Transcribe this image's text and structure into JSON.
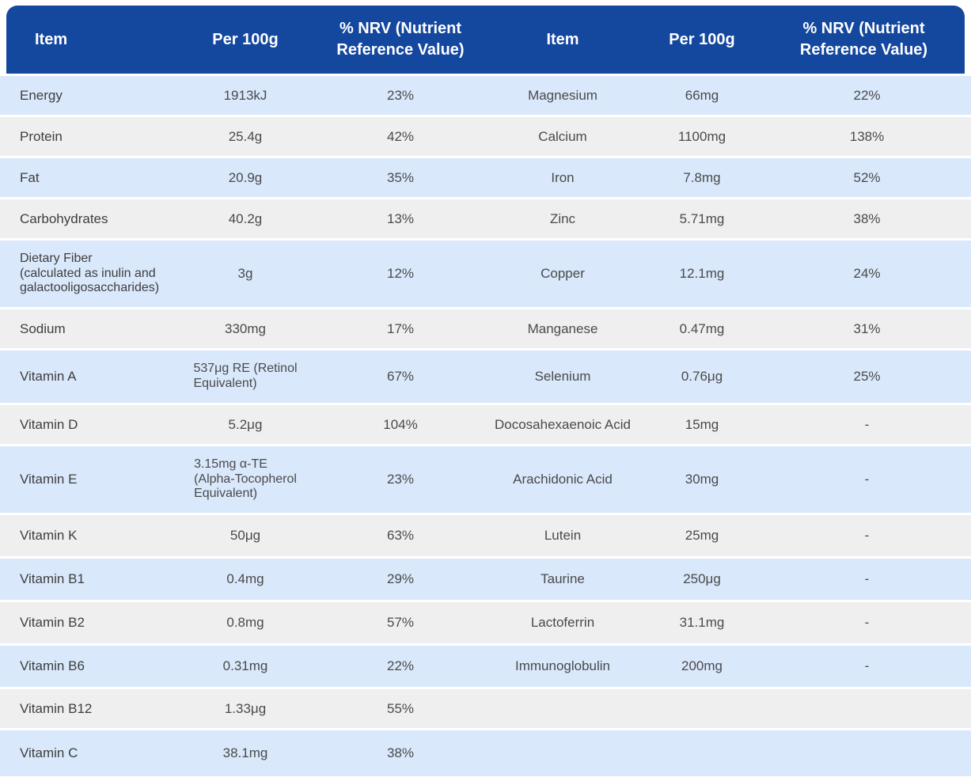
{
  "header": {
    "columns": [
      "Item",
      "Per 100g",
      "% NRV (Nutrient Reference Value)",
      "Item",
      "Per 100g",
      "% NRV (Nutrient Reference Value)"
    ]
  },
  "table": {
    "rows": [
      {
        "left": {
          "item": "Energy",
          "per_100g": "1913kJ",
          "nrv": "23%"
        },
        "right": {
          "item": "Magnesium",
          "per_100g": "66mg",
          "nrv": "22%"
        }
      },
      {
        "left": {
          "item": "Protein",
          "per_100g": "25.4g",
          "nrv": "42%"
        },
        "right": {
          "item": "Calcium",
          "per_100g": "1100mg",
          "nrv": "138%"
        }
      },
      {
        "left": {
          "item": "Fat",
          "per_100g": "20.9g",
          "nrv": "35%"
        },
        "right": {
          "item": "Iron",
          "per_100g": "7.8mg",
          "nrv": "52%"
        }
      },
      {
        "left": {
          "item": "Carbohydrates",
          "per_100g": "40.2g",
          "nrv": "13%"
        },
        "right": {
          "item": "Zinc",
          "per_100g": "5.71mg",
          "nrv": "38%"
        }
      },
      {
        "left": {
          "item": "Dietary Fiber\n(calculated as inulin and\ngalactooligosaccharides)",
          "per_100g": "3g",
          "nrv": "12%"
        },
        "right": {
          "item": "Copper",
          "per_100g": "12.1mg",
          "nrv": "24%"
        }
      },
      {
        "left": {
          "item": "Sodium",
          "per_100g": "330mg",
          "nrv": "17%"
        },
        "right": {
          "item": "Manganese",
          "per_100g": "0.47mg",
          "nrv": "31%"
        }
      },
      {
        "left": {
          "item": "Vitamin A",
          "per_100g": "537μg RE (Retinol\nEquivalent)",
          "nrv": "67%"
        },
        "right": {
          "item": "Selenium",
          "per_100g": "0.76μg",
          "nrv": "25%"
        }
      },
      {
        "left": {
          "item": "Vitamin D",
          "per_100g": "5.2μg",
          "nrv": "104%"
        },
        "right": {
          "item": "Docosahexaenoic Acid",
          "per_100g": "15mg",
          "nrv": "-"
        }
      },
      {
        "left": {
          "item": "Vitamin E",
          "per_100g": "3.15mg α-TE\n(Alpha-Tocopherol\nEquivalent)",
          "nrv": "23%"
        },
        "right": {
          "item": "Arachidonic Acid",
          "per_100g": "30mg",
          "nrv": "-"
        }
      },
      {
        "left": {
          "item": "Vitamin K",
          "per_100g": "50μg",
          "nrv": "63%"
        },
        "right": {
          "item": "Lutein",
          "per_100g": "25mg",
          "nrv": "-"
        }
      },
      {
        "left": {
          "item": "Vitamin B1",
          "per_100g": "0.4mg",
          "nrv": "29%"
        },
        "right": {
          "item": "Taurine",
          "per_100g": "250μg",
          "nrv": "-"
        }
      },
      {
        "left": {
          "item": "Vitamin B2",
          "per_100g": "0.8mg",
          "nrv": "57%"
        },
        "right": {
          "item": "Lactoferrin",
          "per_100g": "31.1mg",
          "nrv": "-"
        }
      },
      {
        "left": {
          "item": "Vitamin B6",
          "per_100g": "0.31mg",
          "nrv": "22%"
        },
        "right": {
          "item": "Immunoglobulin",
          "per_100g": "200mg",
          "nrv": "-"
        }
      },
      {
        "left": {
          "item": "Vitamin B12",
          "per_100g": "1.33μg",
          "nrv": "55%"
        },
        "right": {
          "item": "",
          "per_100g": "",
          "nrv": ""
        }
      },
      {
        "left": {
          "item": "Vitamin C",
          "per_100g": "38.1mg",
          "nrv": "38%"
        },
        "right": {
          "item": "",
          "per_100g": "",
          "nrv": ""
        }
      }
    ]
  },
  "colors": {
    "header_bg": "#14479E",
    "header_text": "#FFFFFF",
    "row_blue": "#D9E8FB",
    "row_gray": "#F0EFEF",
    "label_text": "#3E3E3E",
    "value_text": "#4A4A4A"
  }
}
